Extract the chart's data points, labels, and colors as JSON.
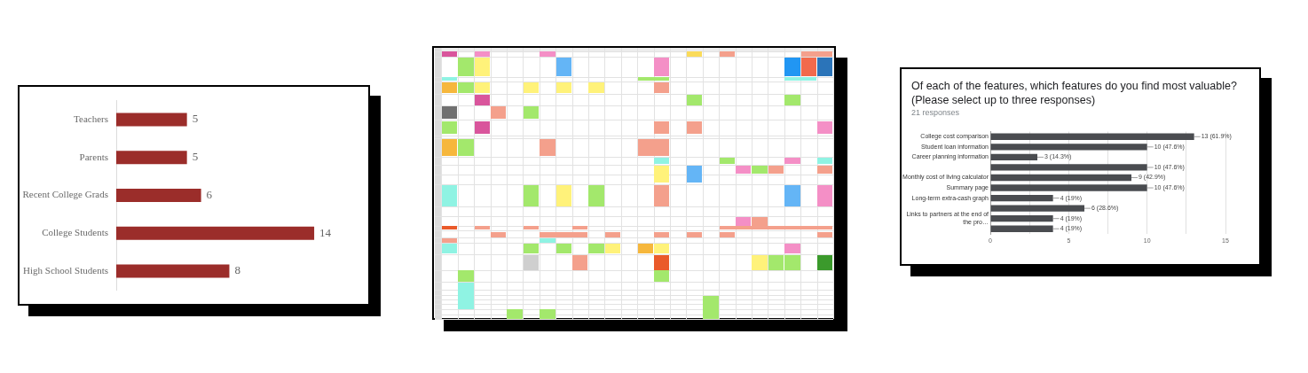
{
  "chart_data": [
    {
      "type": "bar",
      "orientation": "horizontal",
      "categories": [
        "Teachers",
        "Parents",
        "Recent College Grads",
        "College Students",
        "High School Students"
      ],
      "values": [
        5,
        5,
        6,
        14,
        8
      ],
      "color": "#9b2d2a",
      "data_labels": true,
      "tick_labels": "y"
    },
    {
      "type": "bar",
      "orientation": "horizontal",
      "title": "Of each of the features, which features do you find most valuable? (Please select up to three responses)",
      "subtitle": "21 responses",
      "categories": [
        "College cost comparison",
        "Student loan information",
        "Career planning information",
        null,
        "Monthly cost of living calculator",
        "Summary page",
        "Long-term extra-cash graph",
        null,
        "Links to partners at the end of the pro…",
        null
      ],
      "values": [
        13,
        10,
        3,
        10,
        9,
        10,
        4,
        6,
        4,
        4
      ],
      "value_labels": [
        "13 (61.9%)",
        "10 (47.6%)",
        "3 (14.3%)",
        "10 (47.6%)",
        "9 (42.9%)",
        "10 (47.6%)",
        "4 (19%)",
        "6 (28.6%)",
        "4 (19%)",
        "4 (19%)"
      ],
      "color": "#4a4c50",
      "xlim": [
        0,
        15
      ],
      "xticks": [
        0,
        {
          "value": 2.5,
          "label": null
        },
        5,
        {
          "value": 7.5,
          "label": null
        },
        10,
        {
          "value": 12.5,
          "label": null
        },
        15
      ],
      "grid": "x"
    }
  ]
}
